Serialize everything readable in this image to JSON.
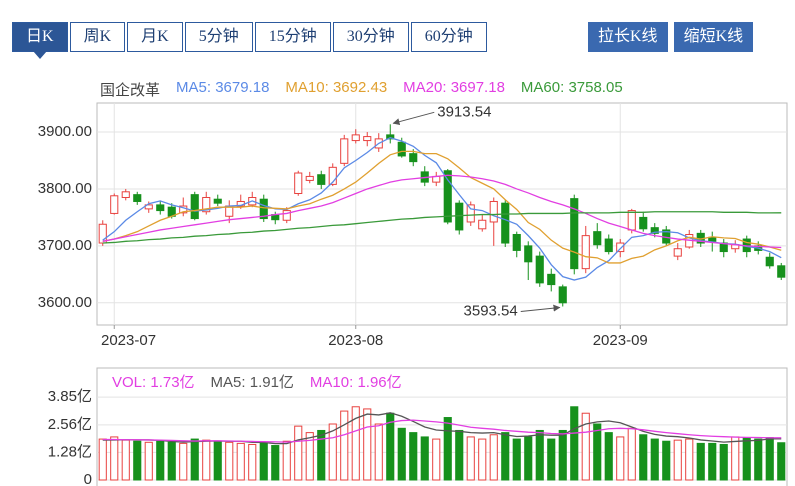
{
  "tabs": [
    "日K",
    "周K",
    "月K",
    "5分钟",
    "15分钟",
    "30分钟",
    "60分钟"
  ],
  "selected_tab": "日K",
  "buttons": [
    "拉长K线",
    "缩短K线"
  ],
  "chart_data": [
    {
      "type": "candlestick",
      "title": "国企改革",
      "categories": [
        null,
        "2023-07",
        null,
        null,
        null,
        null,
        null,
        null,
        null,
        null,
        null,
        null,
        null,
        null,
        null,
        null,
        null,
        null,
        null,
        null,
        null,
        null,
        "2023-08",
        null,
        null,
        null,
        null,
        null,
        null,
        null,
        null,
        null,
        null,
        null,
        null,
        null,
        null,
        null,
        null,
        null,
        null,
        null,
        null,
        null,
        null,
        "2023-09",
        null,
        null,
        null,
        null,
        null,
        null,
        null,
        null,
        null,
        null,
        null,
        null,
        null,
        null
      ],
      "open": [
        3705,
        3757,
        3785,
        3790,
        3765,
        3772,
        3768,
        3758,
        3790,
        3760,
        3782,
        3752,
        3770,
        3772,
        3782,
        3755,
        3745,
        3792,
        3815,
        3825,
        3808,
        3845,
        3885,
        3885,
        3872,
        3895,
        3882,
        3862,
        3830,
        3812,
        3832,
        3775,
        3742,
        3730,
        3742,
        3775,
        3720,
        3700,
        3682,
        3650,
        3628,
        3783,
        3660,
        3725,
        3712,
        3690,
        3728,
        3750,
        3732,
        3728,
        3682,
        3698,
        3722,
        3715,
        3705,
        3695,
        3712,
        3700,
        3680,
        3665
      ],
      "high": [
        3745,
        3792,
        3800,
        3795,
        3778,
        3778,
        3775,
        3785,
        3795,
        3795,
        3790,
        3780,
        3790,
        3795,
        3790,
        3760,
        3768,
        3832,
        3830,
        3832,
        3845,
        3895,
        3905,
        3900,
        3898,
        3913.54,
        3890,
        3870,
        3840,
        3830,
        3835,
        3780,
        3778,
        3755,
        3785,
        3780,
        3725,
        3708,
        3690,
        3660,
        3632,
        3790,
        3735,
        3740,
        3720,
        3712,
        3765,
        3760,
        3740,
        3735,
        3705,
        3728,
        3728,
        3725,
        3712,
        3710,
        3718,
        3708,
        3688,
        3670
      ],
      "low": [
        3700,
        3755,
        3780,
        3772,
        3758,
        3755,
        3748,
        3752,
        3745,
        3755,
        3770,
        3740,
        3765,
        3768,
        3742,
        3738,
        3740,
        3788,
        3810,
        3800,
        3805,
        3840,
        3880,
        3875,
        3865,
        3880,
        3855,
        3840,
        3805,
        3805,
        3738,
        3720,
        3735,
        3725,
        3700,
        3698,
        3680,
        3640,
        3628,
        3620,
        3593.54,
        3650,
        3652,
        3695,
        3685,
        3680,
        3722,
        3725,
        3715,
        3700,
        3675,
        3695,
        3698,
        3690,
        3680,
        3688,
        3680,
        3685,
        3660,
        3640
      ],
      "close": [
        3738,
        3788,
        3795,
        3778,
        3772,
        3762,
        3752,
        3770,
        3748,
        3785,
        3775,
        3770,
        3778,
        3785,
        3748,
        3746,
        3762,
        3828,
        3822,
        3808,
        3838,
        3888,
        3895,
        3892,
        3888,
        3888,
        3858,
        3848,
        3812,
        3822,
        3742,
        3728,
        3772,
        3745,
        3778,
        3705,
        3692,
        3672,
        3635,
        3632,
        3600,
        3660,
        3718,
        3702,
        3690,
        3705,
        3762,
        3730,
        3722,
        3705,
        3695,
        3720,
        3705,
        3708,
        3690,
        3702,
        3690,
        3692,
        3665,
        3645
      ],
      "up_color": "#e8413e",
      "down_color": "#16911c",
      "series": [
        {
          "name": "MA5: 3679.18",
          "color": "#5b8ae6",
          "values": [
            3710,
            3725,
            3745,
            3760,
            3774,
            3779,
            3772,
            3767,
            3761,
            3763,
            3766,
            3770,
            3771,
            3779,
            3771,
            3765,
            3764,
            3774,
            3781,
            3793,
            3812,
            3837,
            3850,
            3864,
            3880,
            3890,
            3884,
            3875,
            3859,
            3846,
            3816,
            3790,
            3765,
            3762,
            3753,
            3746,
            3738,
            3718,
            3696,
            3667,
            3646,
            3640,
            3645,
            3662,
            3674,
            3695,
            3715,
            3718,
            3724,
            3725,
            3723,
            3714,
            3709,
            3707,
            3704,
            3703,
            3699,
            3696,
            3690,
            3679.18
          ]
        },
        {
          "name": "MA10: 3692.43",
          "color": "#e0a030",
          "values": [
            3708,
            3712,
            3718,
            3725,
            3735,
            3745,
            3752,
            3760,
            3762,
            3765,
            3768,
            3768,
            3768,
            3770,
            3767,
            3766,
            3765,
            3770,
            3774,
            3782,
            3789,
            3800,
            3812,
            3828,
            3845,
            3860,
            3866,
            3866,
            3862,
            3862,
            3853,
            3837,
            3820,
            3810,
            3800,
            3781,
            3764,
            3741,
            3729,
            3710,
            3696,
            3689,
            3681,
            3679,
            3670,
            3670,
            3678,
            3682,
            3693,
            3700,
            3709,
            3715,
            3712,
            3716,
            3714,
            3713,
            3706,
            3703,
            3698,
            3692.43
          ]
        },
        {
          "name": "MA20: 3697.18",
          "color": "#e23ee2",
          "values": [
            3708,
            3712,
            3716,
            3720,
            3724,
            3728,
            3731,
            3734,
            3737,
            3740,
            3743,
            3746,
            3748,
            3750,
            3752,
            3755,
            3757,
            3762,
            3766,
            3770,
            3776,
            3784,
            3792,
            3800,
            3806,
            3812,
            3816,
            3818,
            3820,
            3822,
            3824,
            3823,
            3821,
            3818,
            3814,
            3808,
            3800,
            3793,
            3785,
            3778,
            3772,
            3765,
            3757,
            3748,
            3740,
            3734,
            3728,
            3722,
            3718,
            3715,
            3712,
            3710,
            3708,
            3706,
            3704,
            3702,
            3700,
            3699,
            3698,
            3697.18
          ]
        },
        {
          "name": "MA60: 3758.05",
          "color": "#3a9a3a",
          "values": [
            3705,
            3706,
            3708,
            3709,
            3711,
            3712,
            3714,
            3715,
            3717,
            3718,
            3720,
            3721,
            3723,
            3724,
            3726,
            3727,
            3729,
            3731,
            3732,
            3734,
            3736,
            3737,
            3739,
            3741,
            3743,
            3745,
            3747,
            3748,
            3750,
            3751,
            3752,
            3753,
            3754,
            3755,
            3755,
            3756,
            3756,
            3757,
            3757,
            3757,
            3757,
            3758,
            3758,
            3758,
            3758,
            3759,
            3759,
            3759,
            3760,
            3760,
            3760,
            3760,
            3760,
            3760,
            3759,
            3759,
            3759,
            3758,
            3758,
            3758.05
          ]
        }
      ],
      "ylim": [
        3561,
        3951
      ],
      "yticks": [
        {
          "value": 3600,
          "label": "3600.00"
        },
        {
          "value": 3700,
          "label": "3700.00"
        },
        {
          "value": 3800,
          "label": "3800.00"
        },
        {
          "value": 3900,
          "label": "3900.00"
        }
      ],
      "grid": true,
      "annotations": [
        {
          "label": "3913.54",
          "value": 3913.54
        },
        {
          "label": "3593.54",
          "value": 3593.54
        }
      ]
    },
    {
      "type": "bar",
      "volume_label": "VOL: 1.73亿",
      "volume_color": "#e23ee2",
      "values": [
        1.9,
        2.0,
        1.85,
        1.8,
        1.75,
        1.8,
        1.75,
        1.7,
        1.9,
        1.85,
        1.8,
        1.75,
        1.7,
        1.65,
        1.7,
        1.6,
        1.8,
        2.5,
        2.2,
        2.3,
        2.6,
        3.2,
        3.4,
        3.3,
        2.6,
        3.1,
        2.4,
        2.2,
        2.0,
        1.9,
        2.9,
        2.3,
        2.0,
        1.9,
        2.1,
        2.2,
        1.9,
        2.0,
        2.3,
        1.9,
        2.3,
        3.4,
        3.1,
        2.6,
        2.2,
        2.0,
        2.4,
        2.1,
        1.9,
        1.8,
        1.85,
        1.9,
        1.7,
        1.7,
        1.65,
        2.0,
        1.95,
        1.9,
        1.97,
        1.73
      ],
      "up_color": "#e8413e",
      "down_color": "#16911c",
      "series": [
        {
          "name": "MA5: 1.91亿",
          "color": "#555555",
          "values": [
            1.85,
            1.86,
            1.87,
            1.86,
            1.86,
            1.84,
            1.79,
            1.76,
            1.78,
            1.8,
            1.81,
            1.8,
            1.8,
            1.75,
            1.74,
            1.69,
            1.69,
            1.86,
            1.96,
            2.08,
            2.28,
            2.56,
            2.86,
            3.06,
            3.02,
            3.12,
            2.96,
            2.72,
            2.46,
            2.32,
            2.28,
            2.26,
            2.2,
            2.18,
            2.2,
            2.1,
            2.02,
            2.04,
            2.1,
            2.08,
            2.08,
            2.38,
            2.6,
            2.7,
            2.74,
            2.66,
            2.46,
            2.26,
            2.12,
            2.04,
            2.01,
            1.95,
            1.86,
            1.81,
            1.76,
            1.79,
            1.82,
            1.84,
            1.91,
            1.91
          ]
        },
        {
          "name": "MA10: 1.96亿",
          "color": "#e23ee2",
          "values": [
            1.88,
            1.88,
            1.87,
            1.87,
            1.86,
            1.85,
            1.84,
            1.82,
            1.81,
            1.82,
            1.82,
            1.81,
            1.8,
            1.79,
            1.78,
            1.77,
            1.76,
            1.8,
            1.84,
            1.9,
            1.96,
            2.1,
            2.28,
            2.46,
            2.52,
            2.68,
            2.76,
            2.78,
            2.74,
            2.7,
            2.64,
            2.55,
            2.45,
            2.4,
            2.36,
            2.3,
            2.26,
            2.22,
            2.2,
            2.16,
            2.14,
            2.18,
            2.22,
            2.3,
            2.38,
            2.4,
            2.38,
            2.33,
            2.26,
            2.2,
            2.15,
            2.1,
            2.06,
            2.03,
            2.01,
            1.99,
            1.98,
            1.97,
            1.96,
            1.96
          ]
        }
      ],
      "ylim": [
        0,
        5.2
      ],
      "yticks": [
        0,
        {
          "value": 1.28,
          "label": "1.28亿"
        },
        {
          "value": 2.56,
          "label": "2.56亿"
        },
        {
          "value": 3.85,
          "label": "3.85亿"
        }
      ],
      "grid": true
    }
  ]
}
